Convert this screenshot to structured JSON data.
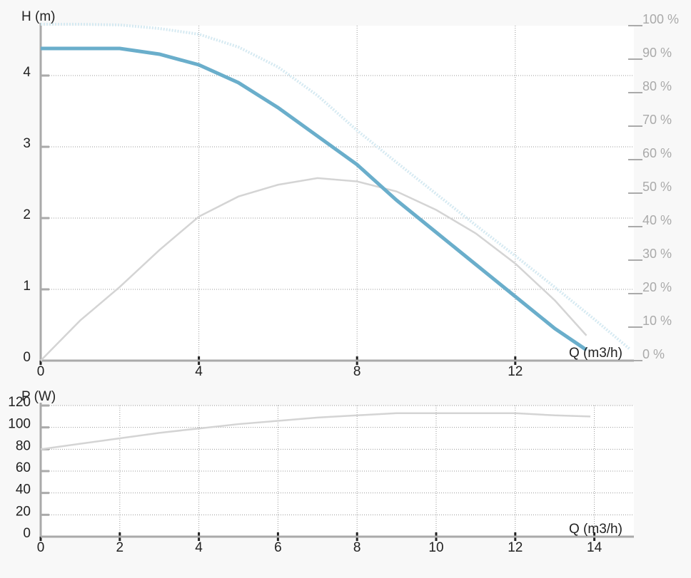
{
  "chart_data": [
    {
      "type": "line",
      "y_label": "H (m)",
      "x_label": "Q (m3/h)",
      "xlim": [
        0,
        15
      ],
      "xticks": [
        0,
        4,
        8,
        12
      ],
      "ylim": [
        0,
        4.7
      ],
      "yticks": [
        0,
        1,
        2,
        3,
        4
      ],
      "y2lim": [
        0,
        100
      ],
      "y2ticks": [
        {
          "value": 0,
          "label": "0 %"
        },
        {
          "value": 10,
          "label": "10 %"
        },
        {
          "value": 20,
          "label": "20 %"
        },
        {
          "value": 30,
          "label": "30 %"
        },
        {
          "value": 40,
          "label": "40 %"
        },
        {
          "value": 50,
          "label": "50 %"
        },
        {
          "value": 60,
          "label": "60 %"
        },
        {
          "value": 70,
          "label": "70 %"
        },
        {
          "value": 80,
          "label": "80 %"
        },
        {
          "value": 90,
          "label": "90 %"
        },
        {
          "value": 100,
          "label": "100 %"
        }
      ],
      "grid": true,
      "series": [
        {
          "color": "#d6eaf2",
          "line_style": "dotted",
          "x": [
            0,
            1,
            2,
            3,
            4,
            5,
            6,
            7,
            8,
            9,
            10,
            11,
            12,
            13,
            14,
            14.9
          ],
          "values": [
            4.72,
            4.72,
            4.71,
            4.66,
            4.58,
            4.4,
            4.12,
            3.72,
            3.23,
            2.78,
            2.34,
            1.9,
            1.47,
            1.03,
            0.58,
            0.16
          ]
        },
        {
          "color": "#d4d4d4",
          "line_style": "solid",
          "axis": "y2",
          "x": [
            0,
            0.5,
            1,
            2,
            3,
            4,
            5,
            6,
            7,
            8,
            9,
            10,
            11,
            12,
            13,
            13.8
          ],
          "values": [
            0,
            6,
            12,
            22,
            33,
            43,
            49,
            52.5,
            54.5,
            53.5,
            50.5,
            45,
            38,
            29,
            18,
            7.5
          ]
        },
        {
          "color": "#6aaecb",
          "line_style": "thick",
          "x": [
            0,
            1,
            2,
            3,
            4,
            5,
            6,
            7,
            8,
            9,
            10,
            11,
            12,
            13,
            13.8
          ],
          "values": [
            4.38,
            4.38,
            4.38,
            4.3,
            4.15,
            3.9,
            3.55,
            3.15,
            2.75,
            2.25,
            1.8,
            1.35,
            0.9,
            0.45,
            0.15
          ]
        }
      ]
    },
    {
      "type": "line",
      "y_label": "P (W)",
      "x_label": "Q (m3/h)",
      "xlim": [
        0,
        15
      ],
      "xticks": [
        0,
        2,
        4,
        6,
        8,
        10,
        12,
        14
      ],
      "ylim": [
        0,
        120
      ],
      "yticks": [
        0,
        20,
        40,
        60,
        80,
        100,
        120
      ],
      "grid": true,
      "series": [
        {
          "color": "#d4d4d4",
          "line_style": "solid",
          "x": [
            0,
            1,
            2,
            3,
            4,
            5,
            6,
            7,
            8,
            9,
            10,
            11,
            12,
            13,
            13.9
          ],
          "values": [
            80,
            85,
            90,
            95,
            99,
            103,
            106,
            109,
            111,
            113,
            113,
            113,
            113,
            111,
            110
          ]
        }
      ]
    }
  ]
}
